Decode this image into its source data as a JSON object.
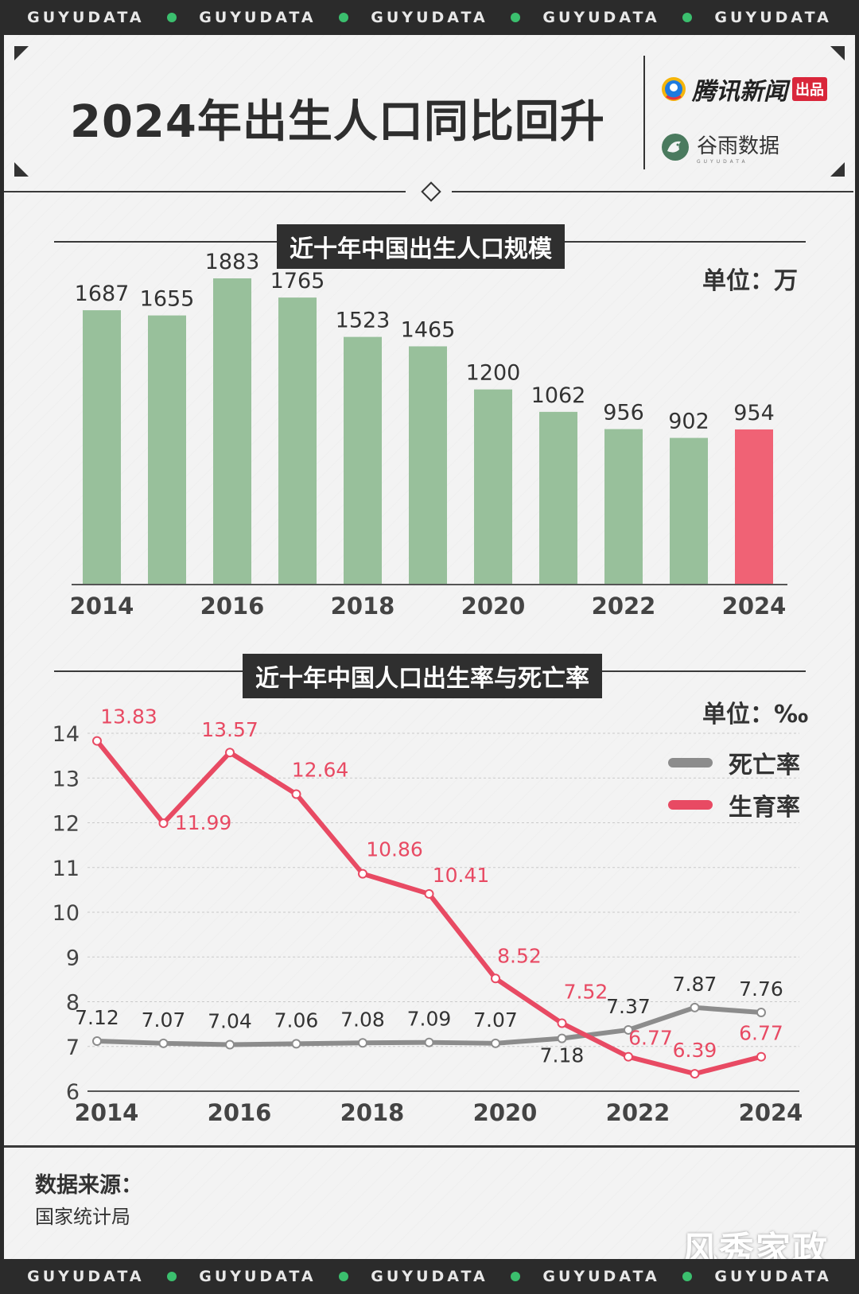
{
  "ticker": {
    "items": [
      "GUYUDATA",
      "GUYUDATA",
      "GUYUDATA",
      "GUYUDATA",
      "GUYUDATA"
    ]
  },
  "header": {
    "title": "2024年出生人口同比回升",
    "brand_primary": "腾讯新闻",
    "brand_primary_tag": "出品",
    "brand_secondary": "谷雨数据",
    "brand_secondary_sub": "GUYUDATA"
  },
  "colors": {
    "bar_default": "#98c09b",
    "bar_highlight": "#f06275",
    "birth_rate_line": "#e84a63",
    "death_rate_line": "#8c8c8c"
  },
  "chart1_section": {
    "title": "近十年中国出生人口规模",
    "unit": "单位：万"
  },
  "chart2_section": {
    "title": "近十年中国人口出生率与死亡率",
    "unit": "单位：‰"
  },
  "chart_data": [
    {
      "type": "bar",
      "title": "近十年中国出生人口规模",
      "unit": "万",
      "categories": [
        "2014",
        "2015",
        "2016",
        "2017",
        "2018",
        "2019",
        "2020",
        "2021",
        "2022",
        "2023",
        "2024"
      ],
      "tick_labels": [
        "2014",
        "2016",
        "2018",
        "2020",
        "2022",
        "2024"
      ],
      "values": [
        1687,
        1655,
        1883,
        1765,
        1523,
        1465,
        1200,
        1062,
        956,
        902,
        954
      ],
      "highlight": "2024",
      "grid": false
    },
    {
      "type": "line",
      "title": "近十年中国人口出生率与死亡率",
      "unit": "‰",
      "x": [
        "2014",
        "2015",
        "2016",
        "2017",
        "2018",
        "2019",
        "2020",
        "2021",
        "2022",
        "2023",
        "2024"
      ],
      "tick_labels": [
        "2014",
        "2016",
        "2018",
        "2020",
        "2022",
        "2024"
      ],
      "ylim": [
        6,
        14
      ],
      "yticks": [
        6,
        7,
        8,
        9,
        10,
        11,
        12,
        13,
        14
      ],
      "grid": true,
      "legend_position": "top-right",
      "series": [
        {
          "name": "死亡率",
          "values": [
            7.12,
            7.07,
            7.04,
            7.06,
            7.08,
            7.09,
            7.07,
            7.18,
            7.37,
            7.87,
            7.76
          ]
        },
        {
          "name": "生育率",
          "values": [
            13.83,
            11.99,
            13.57,
            12.64,
            10.86,
            10.41,
            8.52,
            7.52,
            6.77,
            6.39,
            6.77
          ]
        }
      ]
    }
  ],
  "footer": {
    "source_label": "数据来源：",
    "source_value": "国家统计局"
  },
  "watermark": "风秀家政"
}
